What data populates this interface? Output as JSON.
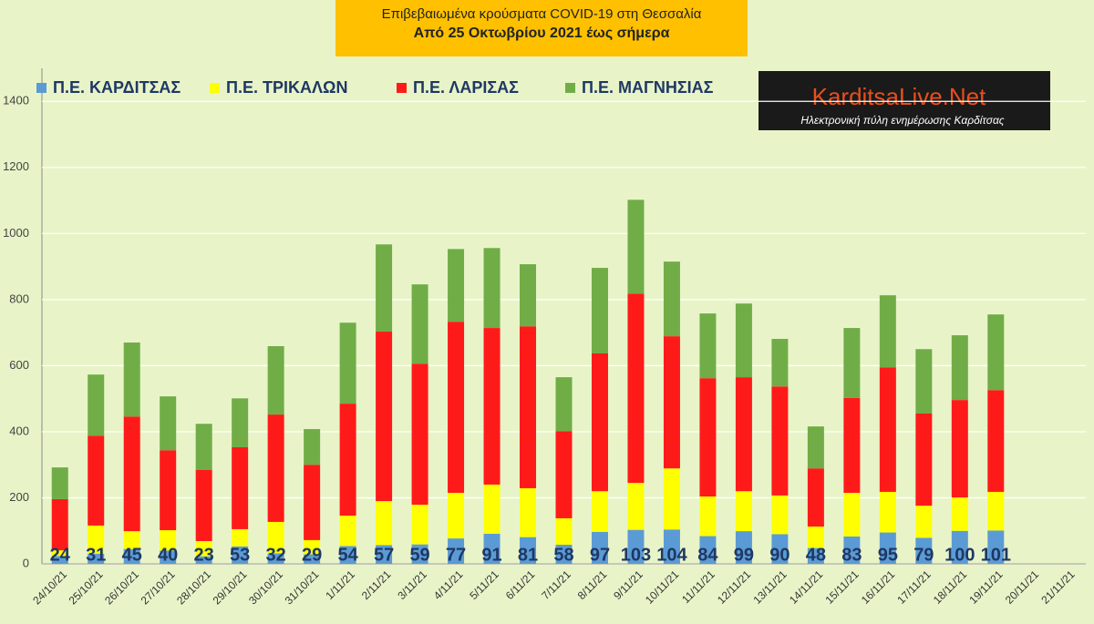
{
  "chart_data": {
    "type": "stacked_bar",
    "title": "Επιβεβαιωμένα κρούσματα COVID-19 στη Θεσσαλία",
    "subtitle": "Από 25 Οκτωβρίου 2021 έως σήμερα",
    "logo_text": "KarditsaLive.Net",
    "logo_subtitle": "Ηλεκτρονική πύλη ενημέρωσης Καρδίτσας",
    "categories": [
      "24/10/21",
      "25/10/21",
      "26/10/21",
      "27/10/21",
      "28/10/21",
      "29/10/21",
      "30/10/21",
      "31/10/21",
      "1/11/21",
      "2/11/21",
      "3/11/21",
      "4/11/21",
      "5/11/21",
      "6/11/21",
      "7/11/21",
      "8/11/21",
      "9/11/21",
      "10/11/21",
      "11/11/21",
      "12/11/21",
      "13/11/21",
      "14/11/21",
      "15/11/21",
      "16/11/21",
      "17/11/21",
      "18/11/21",
      "19/11/21",
      "20/11/21",
      "21/11/21"
    ],
    "series": [
      {
        "name": "Π.Ε. ΚΑΡΔΙΤΣΑΣ",
        "color": "#5b9bd5",
        "data_labels": true,
        "values": [
          24,
          31,
          45,
          40,
          23,
          53,
          32,
          29,
          54,
          57,
          59,
          77,
          91,
          81,
          58,
          97,
          103,
          104,
          84,
          99,
          90,
          48,
          83,
          95,
          79,
          100,
          101,
          null,
          null
        ]
      },
      {
        "name": "Π.Ε. ΤΡΙΚΑΛΩΝ",
        "color": "#ffff00",
        "values": [
          17,
          85,
          54,
          62,
          46,
          52,
          95,
          43,
          92,
          133,
          120,
          138,
          149,
          148,
          80,
          123,
          142,
          185,
          120,
          121,
          117,
          65,
          132,
          123,
          97,
          101,
          117,
          null,
          null
        ]
      },
      {
        "name": "Π.Ε. ΛΑΡΙΣΑΣ",
        "color": "#ff1a1a",
        "values": [
          155,
          272,
          347,
          242,
          215,
          248,
          325,
          228,
          339,
          513,
          427,
          518,
          474,
          490,
          264,
          417,
          573,
          400,
          358,
          345,
          330,
          176,
          287,
          377,
          279,
          295,
          308,
          null,
          null
        ]
      },
      {
        "name": "Π.Ε. ΜΑΓΝΗΣΙΑΣ",
        "color": "#70ad47",
        "values": [
          96,
          185,
          224,
          163,
          140,
          148,
          207,
          108,
          245,
          264,
          240,
          220,
          242,
          188,
          163,
          259,
          284,
          226,
          196,
          223,
          144,
          127,
          212,
          218,
          195,
          196,
          229,
          null,
          null
        ]
      }
    ],
    "ylim": [
      0,
      1500
    ],
    "yticks": [
      0,
      200,
      400,
      600,
      800,
      1000,
      1200,
      1400
    ],
    "grid": true
  }
}
